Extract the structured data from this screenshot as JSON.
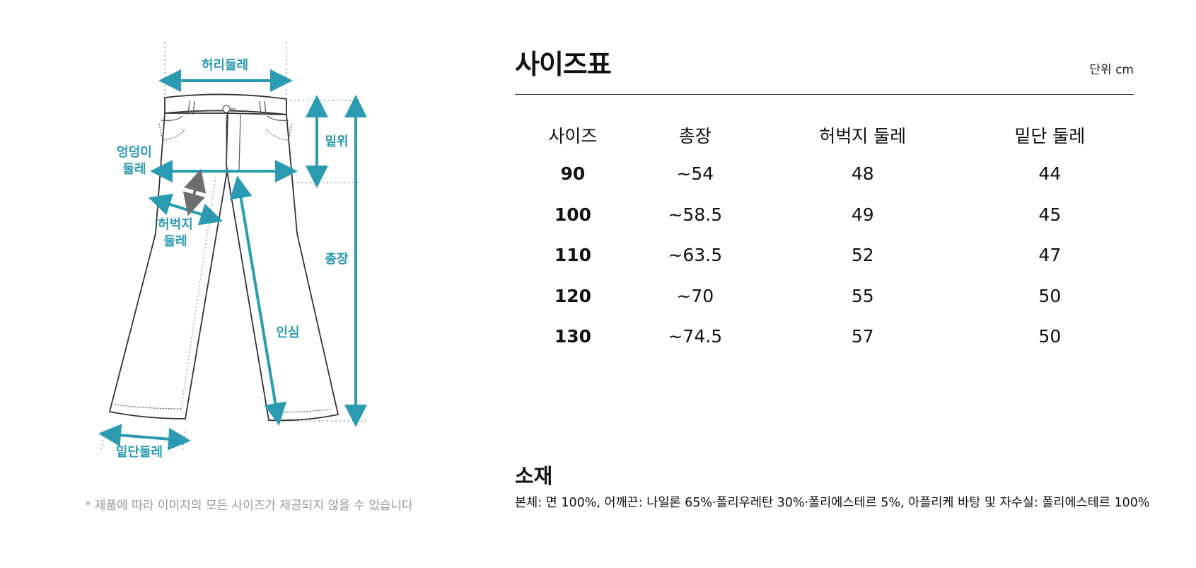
{
  "diagram": {
    "labels": {
      "waist": "허리둘레",
      "rise": "밑위",
      "hip": "엉덩이\n둘레",
      "thigh": "허벅지\n둘레",
      "length": "총장",
      "inseam": "인심",
      "hem": "밑단둘레"
    },
    "note": "* 제품에 따라 이미지의 모든 사이즈가 제공되지 않을 수 있습니다"
  },
  "size_chart": {
    "title": "사이즈표",
    "unit": "단위 cm",
    "headers": [
      "사이즈",
      "총장",
      "허벅지 둘레",
      "밑단 둘레"
    ],
    "rows": [
      [
        "90",
        "~54",
        "48",
        "44"
      ],
      [
        "100",
        "~58.5",
        "49",
        "45"
      ],
      [
        "110",
        "~63.5",
        "52",
        "47"
      ],
      [
        "120",
        "~70",
        "55",
        "50"
      ],
      [
        "130",
        "~74.5",
        "57",
        "50"
      ]
    ]
  },
  "material": {
    "title": "소재",
    "text": "본체: 면 100%, 어깨끈: 나일론 65%·폴리우레탄 30%·폴리에스테르 5%, 아플리케 바탕 및 자수실: 폴리에스테르 100%"
  },
  "colors": {
    "accent": "#2a9bb0",
    "gray_arrow": "#6e6e6e",
    "outline": "#333333",
    "note": "#9a9a9a"
  }
}
